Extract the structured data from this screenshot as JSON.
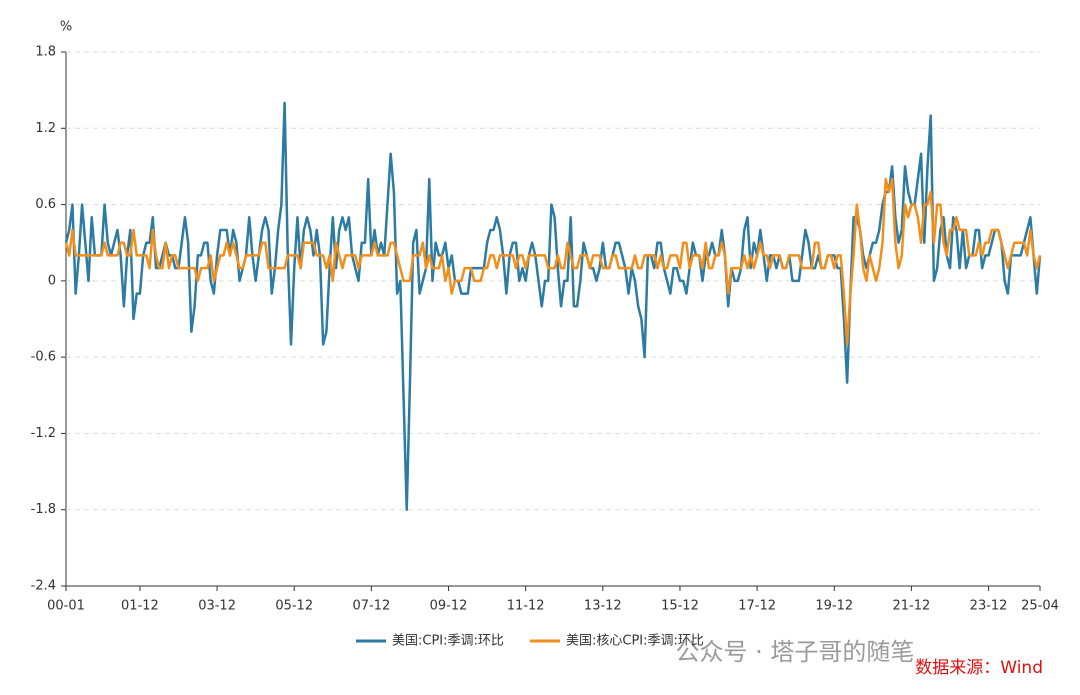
{
  "chart_data": {
    "type": "line",
    "y_unit": "%",
    "ylim": [
      -2.4,
      1.8
    ],
    "yticks": [
      -2.4,
      -1.8,
      -1.2,
      -0.6,
      0,
      0.6,
      1.2,
      1.8
    ],
    "grid": true,
    "legend": "bottom",
    "source": "数据来源：Wind",
    "watermark": "公众号 · 塔子哥的随笔",
    "categories": [
      "00-01",
      null,
      null,
      null,
      null,
      null,
      null,
      null,
      null,
      null,
      null,
      null,
      null,
      null,
      null,
      null,
      null,
      null,
      null,
      null,
      null,
      null,
      null,
      "01-12",
      null,
      null,
      null,
      null,
      null,
      null,
      null,
      null,
      null,
      null,
      null,
      null,
      null,
      null,
      null,
      null,
      null,
      null,
      null,
      null,
      null,
      null,
      null,
      "03-12",
      null,
      null,
      null,
      null,
      null,
      null,
      null,
      null,
      null,
      null,
      null,
      null,
      null,
      null,
      null,
      null,
      null,
      null,
      null,
      null,
      null,
      null,
      null,
      "05-12",
      null,
      null,
      null,
      null,
      null,
      null,
      null,
      null,
      null,
      null,
      null,
      null,
      null,
      null,
      null,
      null,
      null,
      null,
      null,
      null,
      null,
      null,
      null,
      "07-12",
      null,
      null,
      null,
      null,
      null,
      null,
      null,
      null,
      null,
      null,
      null,
      null,
      null,
      null,
      null,
      null,
      null,
      null,
      null,
      null,
      null,
      null,
      null,
      "09-12",
      null,
      null,
      null,
      null,
      null,
      null,
      null,
      null,
      null,
      null,
      null,
      null,
      null,
      null,
      null,
      null,
      null,
      null,
      null,
      null,
      null,
      null,
      null,
      "11-12",
      null,
      null,
      null,
      null,
      null,
      null,
      null,
      null,
      null,
      null,
      null,
      null,
      null,
      null,
      null,
      null,
      null,
      null,
      null,
      null,
      null,
      null,
      null,
      "13-12",
      null,
      null,
      null,
      null,
      null,
      null,
      null,
      null,
      null,
      null,
      null,
      null,
      null,
      null,
      null,
      null,
      null,
      null,
      null,
      null,
      null,
      null,
      null,
      "15-12",
      null,
      null,
      null,
      null,
      null,
      null,
      null,
      null,
      null,
      null,
      null,
      null,
      null,
      null,
      null,
      null,
      null,
      null,
      null,
      null,
      null,
      null,
      null,
      "17-12",
      null,
      null,
      null,
      null,
      null,
      null,
      null,
      null,
      null,
      null,
      null,
      null,
      null,
      null,
      null,
      null,
      null,
      null,
      null,
      null,
      null,
      null,
      null,
      "19-12",
      null,
      null,
      null,
      null,
      null,
      null,
      null,
      null,
      null,
      null,
      null,
      null,
      null,
      null,
      null,
      null,
      null,
      null,
      null,
      null,
      null,
      null,
      null,
      "21-12",
      null,
      null,
      null,
      null,
      null,
      null,
      null,
      null,
      null,
      null,
      null,
      null,
      null,
      null,
      null,
      null,
      null,
      null,
      null,
      null,
      null,
      null,
      null,
      "23-12",
      null,
      null,
      null,
      null,
      null,
      null,
      null,
      null,
      null,
      null,
      null,
      null,
      null,
      null,
      null,
      "25-04"
    ],
    "series": [
      {
        "name": "美国:CPI:季调:环比",
        "color": "#2b7ba3",
        "values": [
          0.3,
          0.4,
          0.6,
          -0.1,
          0.2,
          0.6,
          0.3,
          0.0,
          0.5,
          0.2,
          0.2,
          0.2,
          0.6,
          0.3,
          0.2,
          0.3,
          0.4,
          0.2,
          -0.2,
          0.2,
          0.4,
          -0.3,
          -0.1,
          -0.1,
          0.2,
          0.3,
          0.3,
          0.5,
          0.1,
          0.1,
          0.2,
          0.3,
          0.2,
          0.2,
          0.1,
          0.1,
          0.3,
          0.5,
          0.3,
          -0.4,
          -0.2,
          0.2,
          0.2,
          0.3,
          0.3,
          0.0,
          -0.1,
          0.2,
          0.4,
          0.4,
          0.4,
          0.2,
          0.4,
          0.3,
          0.0,
          0.1,
          0.2,
          0.5,
          0.2,
          0.0,
          0.2,
          0.4,
          0.5,
          0.4,
          -0.1,
          0.1,
          0.4,
          0.6,
          1.4,
          0.2,
          -0.5,
          0.1,
          0.5,
          0.1,
          0.4,
          0.5,
          0.4,
          0.2,
          0.4,
          0.2,
          -0.5,
          -0.4,
          0.1,
          0.5,
          0.1,
          0.4,
          0.5,
          0.4,
          0.5,
          0.2,
          0.1,
          0.0,
          0.3,
          0.3,
          0.8,
          0.2,
          0.4,
          0.2,
          0.3,
          0.2,
          0.6,
          1.0,
          0.7,
          -0.1,
          0.0,
          -0.9,
          -1.8,
          -0.8,
          0.3,
          0.4,
          -0.1,
          0.0,
          0.1,
          0.8,
          0.0,
          0.3,
          0.2,
          0.2,
          0.3,
          0.1,
          0.2,
          0.0,
          0.0,
          -0.1,
          -0.1,
          -0.1,
          0.1,
          0.1,
          0.1,
          0.1,
          0.1,
          0.3,
          0.4,
          0.4,
          0.5,
          0.4,
          0.2,
          -0.1,
          0.2,
          0.3,
          0.3,
          0.0,
          0.1,
          0.0,
          0.2,
          0.3,
          0.2,
          0.0,
          -0.2,
          0.0,
          0.0,
          0.6,
          0.5,
          0.1,
          -0.2,
          0.0,
          0.0,
          0.5,
          -0.2,
          -0.2,
          0.0,
          0.3,
          0.2,
          0.1,
          0.1,
          0.0,
          0.1,
          0.3,
          0.1,
          0.1,
          0.2,
          0.3,
          0.3,
          0.2,
          0.1,
          -0.1,
          0.1,
          0.0,
          -0.2,
          -0.3,
          -0.6,
          0.2,
          0.2,
          0.1,
          0.3,
          0.3,
          0.1,
          0.0,
          -0.1,
          0.1,
          0.1,
          0.0,
          0.0,
          -0.1,
          0.1,
          0.3,
          0.2,
          0.2,
          0.0,
          0.2,
          0.2,
          0.3,
          0.2,
          0.2,
          0.4,
          0.2,
          -0.2,
          0.1,
          0.0,
          0.0,
          0.1,
          0.4,
          0.5,
          0.1,
          0.3,
          0.2,
          0.4,
          0.2,
          0.0,
          0.2,
          0.2,
          0.1,
          0.2,
          0.1,
          0.1,
          0.2,
          0.0,
          0.0,
          0.0,
          0.2,
          0.4,
          0.3,
          0.1,
          0.1,
          0.2,
          0.1,
          0.1,
          0.2,
          0.2,
          0.2,
          0.1,
          0.1,
          -0.3,
          -0.8,
          -0.1,
          0.5,
          0.5,
          0.4,
          0.2,
          0.1,
          0.2,
          0.3,
          0.3,
          0.4,
          0.6,
          0.7,
          0.7,
          0.9,
          0.5,
          0.3,
          0.4,
          0.9,
          0.7,
          0.6,
          0.6,
          0.8,
          1.0,
          0.3,
          0.9,
          1.3,
          0.0,
          0.1,
          0.4,
          0.5,
          0.2,
          0.1,
          0.5,
          0.4,
          0.1,
          0.4,
          0.1,
          0.2,
          0.2,
          0.4,
          0.4,
          0.1,
          0.2,
          0.2,
          0.3,
          0.4,
          0.4,
          0.3,
          0.0,
          -0.1,
          0.2,
          0.2,
          0.2,
          0.2,
          0.3,
          0.4,
          0.5,
          0.2,
          -0.1,
          0.2
        ]
      },
      {
        "name": "美国:核心CPI:季调:环比",
        "color": "#f28e1c",
        "values": [
          0.3,
          0.2,
          0.4,
          0.2,
          0.2,
          0.2,
          0.2,
          0.2,
          0.2,
          0.2,
          0.2,
          0.2,
          0.3,
          0.2,
          0.2,
          0.2,
          0.2,
          0.3,
          0.3,
          0.2,
          0.2,
          0.4,
          0.2,
          0.2,
          0.2,
          0.2,
          0.1,
          0.4,
          0.2,
          0.1,
          0.1,
          0.3,
          0.1,
          0.2,
          0.2,
          0.1,
          0.1,
          0.1,
          0.1,
          0.1,
          0.1,
          0.0,
          0.1,
          0.1,
          0.1,
          0.2,
          0.0,
          0.1,
          0.2,
          0.2,
          0.3,
          0.2,
          0.3,
          0.2,
          0.1,
          0.1,
          0.2,
          0.2,
          0.2,
          0.2,
          0.2,
          0.3,
          0.3,
          0.1,
          0.1,
          0.1,
          0.1,
          0.1,
          0.1,
          0.2,
          0.2,
          0.2,
          0.2,
          0.1,
          0.3,
          0.3,
          0.3,
          0.3,
          0.2,
          0.2,
          0.2,
          0.1,
          0.2,
          0.0,
          0.3,
          0.2,
          0.1,
          0.2,
          0.2,
          0.2,
          0.2,
          0.1,
          0.2,
          0.2,
          0.2,
          0.2,
          0.3,
          0.2,
          0.2,
          0.2,
          0.2,
          0.3,
          0.3,
          0.2,
          0.1,
          0.0,
          0.0,
          0.0,
          0.2,
          0.2,
          0.2,
          0.3,
          0.1,
          0.2,
          0.1,
          0.1,
          0.1,
          0.2,
          0.0,
          0.1,
          -0.1,
          0.0,
          0.0,
          0.0,
          0.1,
          0.1,
          0.1,
          0.0,
          0.0,
          0.0,
          0.1,
          0.1,
          0.2,
          0.2,
          0.1,
          0.2,
          0.2,
          0.2,
          0.2,
          0.2,
          0.1,
          0.2,
          0.2,
          0.1,
          0.2,
          0.2,
          0.2,
          0.2,
          0.2,
          0.2,
          0.1,
          0.1,
          0.1,
          0.2,
          0.1,
          0.1,
          0.3,
          0.2,
          0.1,
          0.1,
          0.2,
          0.2,
          0.2,
          0.1,
          0.2,
          0.2,
          0.2,
          0.1,
          0.1,
          0.1,
          0.2,
          0.2,
          0.1,
          0.1,
          0.1,
          0.1,
          0.1,
          0.2,
          0.1,
          0.1,
          0.2,
          0.2,
          0.2,
          0.2,
          0.1,
          0.2,
          0.1,
          0.1,
          0.2,
          0.2,
          0.2,
          0.1,
          0.3,
          0.3,
          0.1,
          0.2,
          0.2,
          0.2,
          0.1,
          0.3,
          0.1,
          0.1,
          0.2,
          0.2,
          0.3,
          0.2,
          -0.1,
          0.1,
          0.1,
          0.1,
          0.1,
          0.2,
          0.1,
          0.2,
          0.1,
          0.2,
          0.3,
          0.2,
          0.2,
          0.1,
          0.2,
          0.2,
          0.2,
          0.1,
          0.1,
          0.2,
          0.2,
          0.2,
          0.2,
          0.1,
          0.1,
          0.1,
          0.1,
          0.3,
          0.3,
          0.1,
          0.1,
          0.2,
          0.2,
          0.1,
          0.2,
          0.2,
          -0.1,
          -0.5,
          -0.1,
          0.2,
          0.6,
          0.4,
          0.1,
          0.0,
          0.2,
          0.1,
          0.0,
          0.1,
          0.3,
          0.8,
          0.7,
          0.8,
          0.3,
          0.1,
          0.2,
          0.6,
          0.5,
          0.6,
          0.6,
          0.5,
          0.3,
          0.6,
          0.6,
          0.7,
          0.3,
          0.6,
          0.6,
          0.3,
          0.2,
          0.4,
          0.4,
          0.5,
          0.4,
          0.4,
          0.4,
          0.2,
          0.2,
          0.2,
          0.3,
          0.2,
          0.3,
          0.3,
          0.4,
          0.4,
          0.4,
          0.3,
          0.2,
          0.1,
          0.2,
          0.3,
          0.3,
          0.3,
          0.3,
          0.2,
          0.4,
          0.2,
          0.1,
          0.2
        ]
      }
    ]
  }
}
